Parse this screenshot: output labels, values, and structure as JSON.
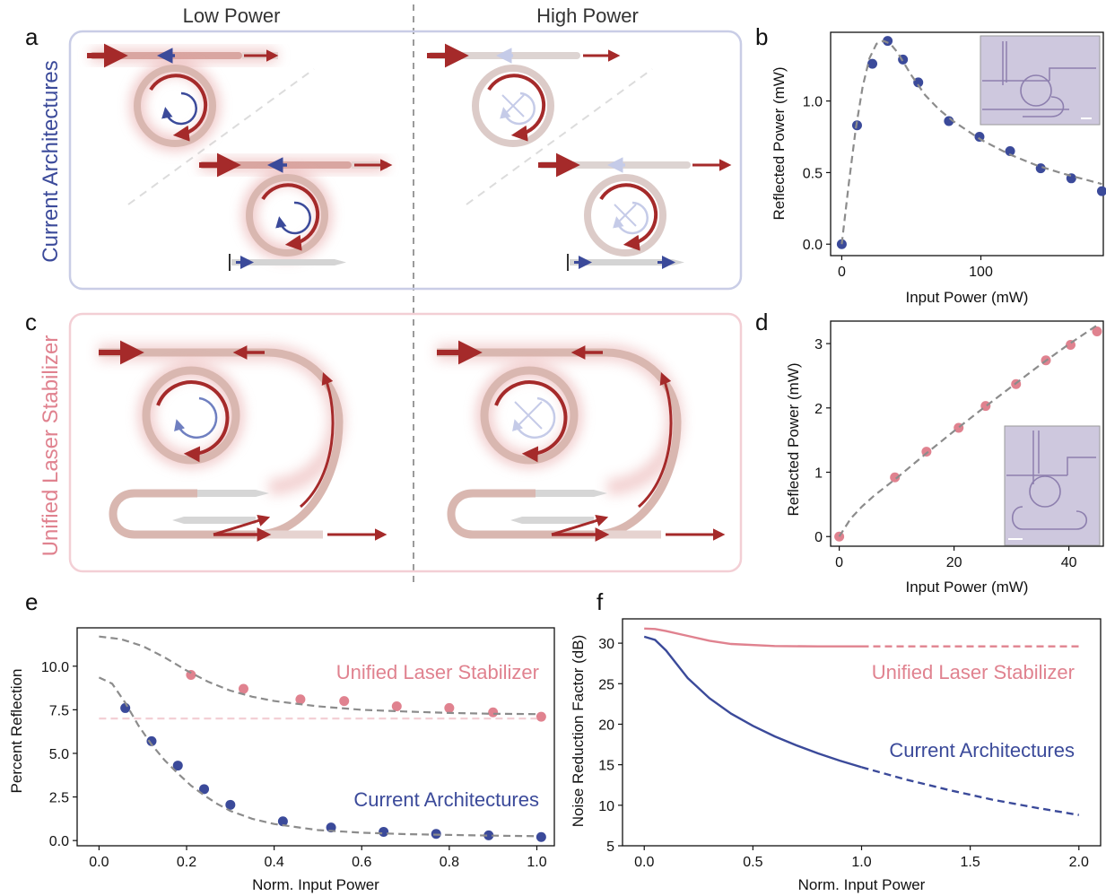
{
  "headers": {
    "low": "Low Power",
    "high": "High Power"
  },
  "panel_labels": {
    "a": "a",
    "b": "b",
    "c": "c",
    "d": "d",
    "e": "e",
    "f": "f"
  },
  "side_labels": {
    "current": "Current Architectures",
    "unified": "Unified Laser Stabilizer"
  },
  "colors": {
    "blue": "#3b4a9a",
    "pink": "#e0828f",
    "red": "#a52a2a",
    "ring": "#d8b4ac",
    "grey": "#8c8c8c",
    "blue_box": "#c9cde6",
    "pink_box": "#f3cfd5"
  },
  "chart_data": [
    {
      "id": "b",
      "type": "scatter",
      "xlabel": "Input Power (mW)",
      "ylabel": "Reflected Power (mW)",
      "xlim": [
        -8,
        188
      ],
      "ylim": [
        -0.08,
        1.48
      ],
      "xticks": [
        0,
        100
      ],
      "yticks": [
        0.0,
        0.5,
        1.0
      ],
      "ytick_labels": [
        "0.0",
        "0.5",
        "1.0"
      ],
      "series": [
        {
          "kind": "points",
          "color": "#3b4a9a",
          "x": [
            0,
            11,
            22,
            33,
            44,
            55,
            77,
            99,
            121,
            143,
            165,
            187
          ],
          "y": [
            0.0,
            0.83,
            1.26,
            1.42,
            1.29,
            1.13,
            0.86,
            0.75,
            0.65,
            0.53,
            0.46,
            0.37
          ]
        },
        {
          "kind": "fit",
          "style": "dashed",
          "color": "#8c8c8c",
          "x": [
            0,
            5,
            10,
            15,
            20,
            25,
            30,
            35,
            40,
            50,
            60,
            70,
            80,
            100,
            120,
            140,
            160,
            187
          ],
          "y": [
            0.0,
            0.42,
            0.8,
            1.1,
            1.3,
            1.4,
            1.42,
            1.4,
            1.34,
            1.18,
            1.04,
            0.94,
            0.86,
            0.73,
            0.63,
            0.55,
            0.49,
            0.42
          ]
        }
      ]
    },
    {
      "id": "d",
      "type": "scatter",
      "xlabel": "Input Power (mW)",
      "ylabel": "Reflected Power (mW)",
      "xlim": [
        -1.5,
        46
      ],
      "ylim": [
        -0.15,
        3.35
      ],
      "xticks": [
        0,
        20,
        40
      ],
      "yticks": [
        0,
        1,
        2,
        3
      ],
      "ytick_labels": [
        "0",
        "1",
        "2",
        "3"
      ],
      "series": [
        {
          "kind": "points",
          "color": "#e0828f",
          "x": [
            0,
            9.7,
            15.2,
            20.8,
            25.5,
            30.8,
            36,
            40.3,
            44.9
          ],
          "y": [
            0.0,
            0.92,
            1.32,
            1.69,
            2.03,
            2.37,
            2.74,
            2.98,
            3.19
          ]
        },
        {
          "kind": "fit",
          "style": "dashed",
          "color": "#8c8c8c",
          "x": [
            0,
            2,
            4,
            6,
            8,
            10,
            15,
            20,
            25,
            30,
            35,
            40,
            45
          ],
          "y": [
            0.0,
            0.28,
            0.47,
            0.63,
            0.77,
            0.91,
            1.28,
            1.64,
            1.99,
            2.33,
            2.67,
            2.99,
            3.29
          ]
        }
      ]
    },
    {
      "id": "e",
      "type": "scatter",
      "xlabel": "Norm. Input Power",
      "ylabel": "Percent Reflection",
      "xlim": [
        -0.05,
        1.04
      ],
      "ylim": [
        -0.3,
        12.2
      ],
      "xticks": [
        0.0,
        0.2,
        0.4,
        0.6,
        0.8,
        1.0
      ],
      "yticks": [
        0.0,
        2.5,
        5.0,
        7.5,
        10.0
      ],
      "xtick_labels": [
        "0.0",
        "0.2",
        "0.4",
        "0.6",
        "0.8",
        "1.0"
      ],
      "ytick_labels": [
        "0.0",
        "2.5",
        "5.0",
        "7.5",
        "10.0"
      ],
      "series": [
        {
          "name": "Unified Laser Stabilizer",
          "kind": "points",
          "color": "#e0828f",
          "x": [
            0.21,
            0.33,
            0.46,
            0.56,
            0.68,
            0.8,
            0.9,
            1.01
          ],
          "y": [
            9.5,
            8.7,
            8.1,
            8.0,
            7.7,
            7.6,
            7.35,
            7.1
          ]
        },
        {
          "kind": "fit",
          "style": "dashed",
          "color": "#8c8c8c",
          "x": [
            0.0,
            0.05,
            0.1,
            0.15,
            0.2,
            0.25,
            0.3,
            0.35,
            0.4,
            0.5,
            0.6,
            0.7,
            0.8,
            0.9,
            1.0
          ],
          "y": [
            11.7,
            11.55,
            11.15,
            10.5,
            9.75,
            9.1,
            8.6,
            8.25,
            8.0,
            7.7,
            7.5,
            7.4,
            7.32,
            7.27,
            7.25
          ]
        },
        {
          "name": "Current Architectures",
          "kind": "points",
          "color": "#3b4a9a",
          "x": [
            0.06,
            0.12,
            0.18,
            0.24,
            0.3,
            0.42,
            0.53,
            0.65,
            0.77,
            0.89,
            1.01
          ],
          "y": [
            7.6,
            5.7,
            4.3,
            2.95,
            2.05,
            1.1,
            0.75,
            0.5,
            0.38,
            0.3,
            0.2
          ]
        },
        {
          "kind": "fit",
          "style": "dashed",
          "color": "#8c8c8c",
          "x": [
            0.0,
            0.03,
            0.06,
            0.09,
            0.12,
            0.15,
            0.18,
            0.21,
            0.24,
            0.27,
            0.3,
            0.35,
            0.4,
            0.5,
            0.6,
            0.7,
            0.8,
            0.9,
            1.0
          ],
          "y": [
            9.35,
            9.0,
            7.9,
            6.6,
            5.5,
            4.6,
            3.85,
            3.15,
            2.6,
            2.1,
            1.7,
            1.25,
            0.95,
            0.6,
            0.45,
            0.37,
            0.32,
            0.28,
            0.25
          ]
        },
        {
          "kind": "ref",
          "style": "dashed",
          "color": "#f3cfd5",
          "x": [
            0.0,
            1.0
          ],
          "y": [
            7.0,
            7.0
          ]
        }
      ]
    },
    {
      "id": "f",
      "type": "line",
      "xlabel": "Norm. Input Power",
      "ylabel": "Noise Reduction Factor (dB)",
      "xlim": [
        -0.1,
        2.1
      ],
      "ylim": [
        5,
        33
      ],
      "xticks": [
        0.0,
        0.5,
        1.0,
        1.5,
        2.0
      ],
      "yticks": [
        5,
        10,
        15,
        20,
        25,
        30
      ],
      "xtick_labels": [
        "0.0",
        "0.5",
        "1.0",
        "1.5",
        "2.0"
      ],
      "ytick_labels": [
        "5",
        "10",
        "15",
        "20",
        "25",
        "30"
      ],
      "series": [
        {
          "name": "Unified Laser Stabilizer",
          "kind": "line",
          "color": "#e0828f",
          "x": [
            0.0,
            0.05,
            0.1,
            0.2,
            0.3,
            0.4,
            0.6,
            0.8,
            1.0
          ],
          "y": [
            31.8,
            31.75,
            31.5,
            30.9,
            30.3,
            29.9,
            29.65,
            29.6,
            29.6
          ]
        },
        {
          "kind": "line",
          "style": "dashed",
          "color": "#e0828f",
          "x": [
            1.0,
            1.5,
            2.0
          ],
          "y": [
            29.6,
            29.6,
            29.6
          ]
        },
        {
          "name": "Current Architectures",
          "kind": "line",
          "color": "#3b4a9a",
          "x": [
            0.0,
            0.05,
            0.1,
            0.15,
            0.2,
            0.3,
            0.4,
            0.5,
            0.6,
            0.7,
            0.8,
            0.9,
            1.0
          ],
          "y": [
            30.8,
            30.4,
            29.1,
            27.4,
            25.7,
            23.2,
            21.3,
            19.8,
            18.5,
            17.4,
            16.4,
            15.5,
            14.7
          ]
        },
        {
          "kind": "line",
          "style": "dashed",
          "color": "#3b4a9a",
          "x": [
            1.0,
            1.2,
            1.4,
            1.6,
            1.8,
            2.0
          ],
          "y": [
            14.7,
            13.2,
            11.9,
            10.7,
            9.7,
            8.8
          ]
        }
      ]
    }
  ]
}
